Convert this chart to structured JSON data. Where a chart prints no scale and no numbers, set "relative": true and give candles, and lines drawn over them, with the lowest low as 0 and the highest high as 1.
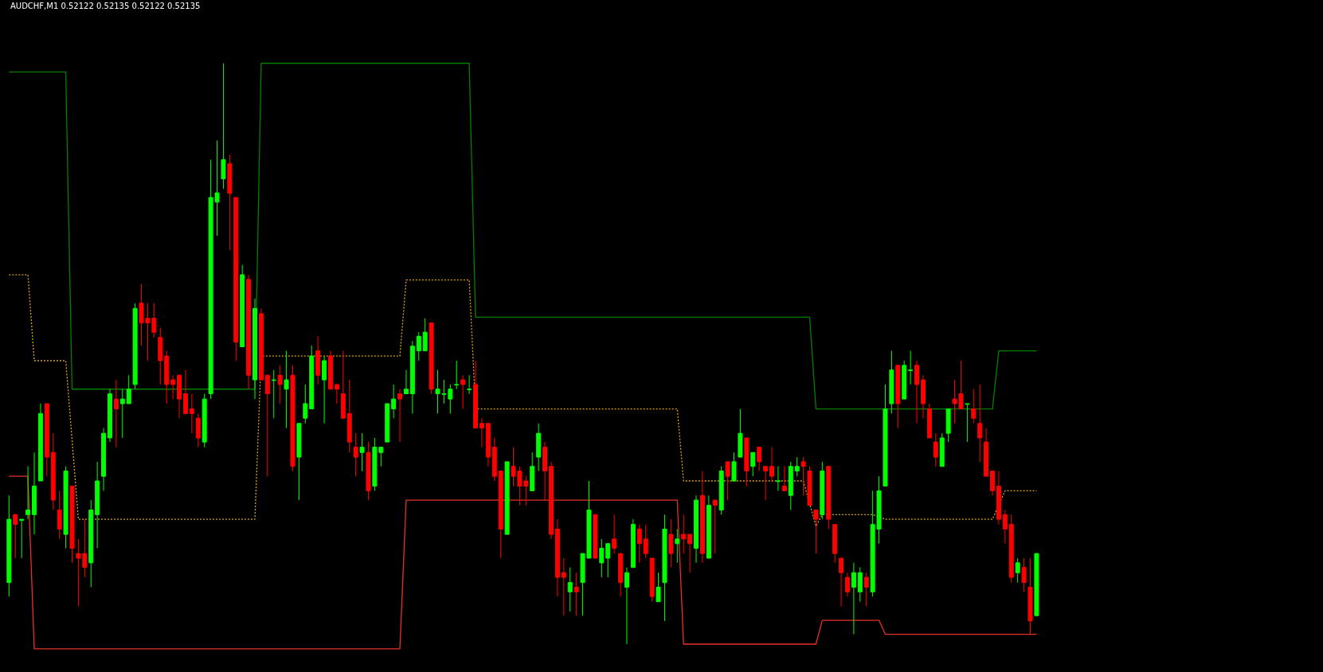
{
  "chart_data": {
    "type": "candlestick",
    "title": "AUDCHF,M1  0.52122 0.52135 0.52122 0.52135",
    "relative": true,
    "categories": [
      null,
      null,
      null,
      null,
      null,
      null,
      null,
      null,
      null,
      null,
      null,
      null,
      null,
      null,
      null,
      null,
      null,
      null,
      null,
      null,
      null,
      null,
      null,
      null,
      null,
      null,
      null,
      null,
      null,
      null,
      null,
      null,
      null,
      null,
      null,
      null,
      null,
      null,
      null,
      null,
      null,
      null,
      null,
      null,
      null,
      null,
      null,
      null,
      null,
      null,
      null,
      null,
      null,
      null,
      null,
      null,
      null,
      null,
      null,
      null,
      null,
      null,
      null,
      null,
      null,
      null,
      null,
      null,
      null,
      null,
      null,
      null,
      null,
      null,
      null,
      null,
      null,
      null,
      null,
      null,
      null,
      null,
      null,
      null,
      null,
      null,
      null,
      null,
      null,
      null,
      null,
      null,
      null,
      null,
      null,
      null,
      null,
      null,
      null,
      null,
      null,
      null,
      null,
      null,
      null,
      null,
      null,
      null,
      null,
      null,
      null,
      null,
      null,
      null,
      null,
      null,
      null,
      null,
      null,
      null,
      null,
      null,
      null,
      null,
      null,
      null,
      null,
      null,
      null,
      null,
      null,
      null,
      null,
      null,
      null,
      null,
      null,
      null,
      null,
      null,
      null,
      null,
      null,
      null,
      null,
      null,
      null,
      null,
      null,
      null,
      null,
      null,
      null,
      null,
      null,
      null,
      null,
      null,
      null,
      null,
      null,
      null,
      null,
      null
    ],
    "ohlc": [
      [
        0.106,
        0.256,
        0.082,
        0.215
      ],
      [
        0.223,
        0.224,
        0.148,
        0.206
      ],
      [
        0.213,
        0.215,
        0.148,
        0.215
      ],
      [
        0.223,
        0.306,
        0.215,
        0.231
      ],
      [
        0.223,
        0.33,
        0.189,
        0.272
      ],
      [
        0.281,
        0.414,
        0.281,
        0.397
      ],
      [
        0.414,
        0.414,
        0.289,
        0.322
      ],
      [
        0.33,
        0.363,
        0.231,
        0.248
      ],
      [
        0.231,
        0.264,
        0.181,
        0.198
      ],
      [
        0.189,
        0.306,
        0.165,
        0.298
      ],
      [
        0.272,
        0.272,
        0.14,
        0.165
      ],
      [
        0.156,
        0.181,
        0.065,
        0.148
      ],
      [
        0.156,
        0.215,
        0.115,
        0.132
      ],
      [
        0.14,
        0.248,
        0.098,
        0.231
      ],
      [
        0.223,
        0.314,
        0.165,
        0.281
      ],
      [
        0.289,
        0.372,
        0.264,
        0.363
      ],
      [
        0.355,
        0.439,
        0.348,
        0.431
      ],
      [
        0.422,
        0.455,
        0.339,
        0.405
      ],
      [
        0.414,
        0.439,
        0.355,
        0.422
      ],
      [
        0.414,
        0.463,
        0.414,
        0.439
      ],
      [
        0.447,
        0.587,
        0.439,
        0.578
      ],
      [
        0.587,
        0.62,
        0.514,
        0.553
      ],
      [
        0.561,
        0.587,
        0.488,
        0.553
      ],
      [
        0.561,
        0.587,
        0.528,
        0.537
      ],
      [
        0.528,
        0.545,
        0.447,
        0.488
      ],
      [
        0.496,
        0.505,
        0.414,
        0.447
      ],
      [
        0.455,
        0.463,
        0.422,
        0.447
      ],
      [
        0.463,
        0.463,
        0.389,
        0.422
      ],
      [
        0.431,
        0.472,
        0.395,
        0.397
      ],
      [
        0.405,
        0.431,
        0.363,
        0.397
      ],
      [
        0.389,
        0.397,
        0.339,
        0.355
      ],
      [
        0.348,
        0.431,
        0.339,
        0.422
      ],
      [
        0.431,
        0.834,
        0.422,
        0.769
      ],
      [
        0.761,
        0.867,
        0.703,
        0.777
      ],
      [
        0.801,
        1.0,
        0.784,
        0.834
      ],
      [
        0.827,
        0.843,
        0.678,
        0.776
      ],
      [
        0.769,
        0.769,
        0.488,
        0.52
      ],
      [
        0.512,
        0.653,
        0.512,
        0.636
      ],
      [
        0.628,
        0.636,
        0.439,
        0.463
      ],
      [
        0.455,
        0.595,
        0.422,
        0.578
      ],
      [
        0.569,
        0.578,
        0.454,
        0.455
      ],
      [
        0.463,
        0.463,
        0.289,
        0.431
      ],
      [
        0.454,
        0.472,
        0.389,
        0.455
      ],
      [
        0.463,
        0.48,
        0.414,
        0.447
      ],
      [
        0.439,
        0.505,
        0.372,
        0.455
      ],
      [
        0.463,
        0.48,
        0.298,
        0.306
      ],
      [
        0.322,
        0.38,
        0.248,
        0.38
      ],
      [
        0.389,
        0.447,
        0.38,
        0.414
      ],
      [
        0.405,
        0.514,
        0.405,
        0.496
      ],
      [
        0.505,
        0.53,
        0.447,
        0.463
      ],
      [
        0.455,
        0.496,
        0.38,
        0.488
      ],
      [
        0.496,
        0.505,
        0.439,
        0.439
      ],
      [
        0.447,
        0.447,
        0.414,
        0.439
      ],
      [
        0.431,
        0.505,
        0.389,
        0.389
      ],
      [
        0.397,
        0.455,
        0.33,
        0.348
      ],
      [
        0.339,
        0.363,
        0.289,
        0.322
      ],
      [
        0.33,
        0.363,
        0.298,
        0.339
      ],
      [
        0.33,
        0.348,
        0.248,
        0.264
      ],
      [
        0.272,
        0.355,
        0.264,
        0.339
      ],
      [
        0.33,
        0.339,
        0.306,
        0.339
      ],
      [
        0.348,
        0.414,
        0.348,
        0.414
      ],
      [
        0.405,
        0.447,
        0.389,
        0.422
      ],
      [
        0.431,
        0.439,
        0.348,
        0.422
      ],
      [
        0.431,
        0.472,
        0.431,
        0.439
      ],
      [
        0.431,
        0.522,
        0.397,
        0.513
      ],
      [
        0.505,
        0.537,
        0.488,
        0.53
      ],
      [
        0.505,
        0.561,
        0.505,
        0.537
      ],
      [
        0.553,
        0.553,
        0.431,
        0.439
      ],
      [
        0.431,
        0.472,
        0.397,
        0.439
      ],
      [
        0.43,
        0.455,
        0.414,
        0.431
      ],
      [
        0.422,
        0.447,
        0.397,
        0.439
      ],
      [
        0.446,
        0.488,
        0.439,
        0.447
      ],
      [
        0.455,
        0.463,
        0.405,
        0.447
      ],
      [
        0.438,
        0.463,
        0.431,
        0.439
      ],
      [
        0.447,
        0.488,
        0.372,
        0.372
      ],
      [
        0.38,
        0.389,
        0.339,
        0.372
      ],
      [
        0.38,
        0.38,
        0.306,
        0.322
      ],
      [
        0.339,
        0.355,
        0.281,
        0.289
      ],
      [
        0.298,
        0.298,
        0.148,
        0.198
      ],
      [
        0.189,
        0.314,
        0.189,
        0.314
      ],
      [
        0.306,
        0.339,
        0.272,
        0.289
      ],
      [
        0.298,
        0.306,
        0.239,
        0.272
      ],
      [
        0.281,
        0.289,
        0.239,
        0.272
      ],
      [
        0.264,
        0.33,
        0.264,
        0.306
      ],
      [
        0.322,
        0.38,
        0.298,
        0.363
      ],
      [
        0.339,
        0.348,
        0.248,
        0.298
      ],
      [
        0.306,
        0.314,
        0.181,
        0.189
      ],
      [
        0.198,
        0.215,
        0.082,
        0.115
      ],
      [
        0.123,
        0.148,
        0.049,
        0.115
      ],
      [
        0.09,
        0.132,
        0.056,
        0.106
      ],
      [
        0.098,
        0.123,
        0.049,
        0.09
      ],
      [
        0.106,
        0.156,
        0.049,
        0.156
      ],
      [
        0.148,
        0.281,
        0.148,
        0.231
      ],
      [
        0.223,
        0.223,
        0.148,
        0.148
      ],
      [
        0.14,
        0.181,
        0.115,
        0.165
      ],
      [
        0.148,
        0.173,
        0.115,
        0.173
      ],
      [
        0.181,
        0.223,
        0.156,
        0.165
      ],
      [
        0.156,
        0.156,
        0.082,
        0.106
      ],
      [
        0.098,
        0.132,
        0.0,
        0.123
      ],
      [
        0.132,
        0.215,
        0.132,
        0.206
      ],
      [
        0.198,
        0.206,
        0.14,
        0.173
      ],
      [
        0.181,
        0.206,
        0.148,
        0.156
      ],
      [
        0.148,
        0.148,
        0.073,
        0.082
      ],
      [
        0.073,
        0.123,
        0.073,
        0.098
      ],
      [
        0.106,
        0.223,
        0.04,
        0.198
      ],
      [
        0.189,
        0.215,
        0.132,
        0.156
      ],
      [
        0.173,
        0.198,
        0.14,
        0.181
      ],
      [
        0.189,
        0.223,
        0.156,
        0.181
      ],
      [
        0.189,
        0.189,
        0.123,
        0.173
      ],
      [
        0.165,
        0.256,
        0.14,
        0.248
      ],
      [
        0.256,
        0.298,
        0.14,
        0.156
      ],
      [
        0.148,
        0.256,
        0.148,
        0.239
      ],
      [
        0.248,
        0.248,
        0.156,
        0.239
      ],
      [
        0.231,
        0.306,
        0.223,
        0.298
      ],
      [
        0.314,
        0.314,
        0.248,
        0.289
      ],
      [
        0.281,
        0.33,
        0.281,
        0.314
      ],
      [
        0.322,
        0.405,
        0.322,
        0.363
      ],
      [
        0.355,
        0.355,
        0.272,
        0.298
      ],
      [
        0.306,
        0.33,
        0.289,
        0.33
      ],
      [
        0.339,
        0.339,
        0.298,
        0.314
      ],
      [
        0.306,
        0.306,
        0.248,
        0.298
      ],
      [
        0.306,
        0.339,
        0.281,
        0.289
      ],
      [
        0.28,
        0.306,
        0.264,
        0.281
      ],
      [
        0.272,
        0.306,
        0.264,
        0.264
      ],
      [
        0.256,
        0.314,
        0.231,
        0.306
      ],
      [
        0.298,
        0.322,
        0.289,
        0.306
      ],
      [
        0.314,
        0.322,
        0.256,
        0.306
      ],
      [
        0.298,
        0.306,
        0.239,
        0.239
      ],
      [
        0.231,
        0.231,
        0.156,
        0.215
      ],
      [
        0.223,
        0.314,
        0.215,
        0.298
      ],
      [
        0.306,
        0.306,
        0.198,
        0.215
      ],
      [
        0.206,
        0.206,
        0.14,
        0.156
      ],
      [
        0.148,
        0.148,
        0.065,
        0.123
      ],
      [
        0.115,
        0.123,
        0.082,
        0.09
      ],
      [
        0.098,
        0.14,
        0.017,
        0.123
      ],
      [
        0.09,
        0.132,
        0.073,
        0.123
      ],
      [
        0.115,
        0.123,
        0.065,
        0.098
      ],
      [
        0.09,
        0.264,
        0.082,
        0.206
      ],
      [
        0.198,
        0.289,
        0.173,
        0.264
      ],
      [
        0.272,
        0.447,
        0.272,
        0.405
      ],
      [
        0.414,
        0.505,
        0.397,
        0.472
      ],
      [
        0.48,
        0.48,
        0.372,
        0.414
      ],
      [
        0.422,
        0.488,
        0.422,
        0.48
      ],
      [
        0.471,
        0.505,
        0.447,
        0.472
      ],
      [
        0.48,
        0.488,
        0.38,
        0.447
      ],
      [
        0.455,
        0.463,
        0.389,
        0.414
      ],
      [
        0.405,
        0.414,
        0.355,
        0.355
      ],
      [
        0.348,
        0.363,
        0.306,
        0.322
      ],
      [
        0.306,
        0.363,
        0.306,
        0.355
      ],
      [
        0.363,
        0.405,
        0.348,
        0.405
      ],
      [
        0.422,
        0.455,
        0.38,
        0.414
      ],
      [
        0.431,
        0.488,
        0.405,
        0.405
      ],
      [
        0.413,
        0.414,
        0.348,
        0.414
      ],
      [
        0.405,
        0.439,
        0.38,
        0.389
      ],
      [
        0.38,
        0.447,
        0.314,
        0.355
      ],
      [
        0.348,
        0.372,
        0.289,
        0.289
      ],
      [
        0.298,
        0.298,
        0.256,
        0.264
      ],
      [
        0.272,
        0.298,
        0.206,
        0.215
      ],
      [
        0.223,
        0.231,
        0.173,
        0.198
      ],
      [
        0.206,
        0.223,
        0.106,
        0.115
      ],
      [
        0.123,
        0.148,
        0.106,
        0.14
      ],
      [
        0.132,
        0.148,
        0.09,
        0.106
      ],
      [
        0.098,
        0.148,
        0.017,
        0.04
      ],
      [
        0.049,
        0.156,
        0.049,
        0.156
      ]
    ],
    "colors": [
      "#00ff00",
      "#ff0000",
      "#00ff00",
      "#00ff00",
      "#00ff00",
      "#00ff00",
      "#ff0000",
      "#ff0000",
      "#ff0000",
      "#00ff00",
      "#ff0000",
      "#ff0000",
      "#ff0000",
      "#00ff00",
      "#00ff00",
      "#00ff00",
      "#00ff00",
      "#ff0000",
      "#00ff00",
      "#00ff00",
      "#00ff00",
      "#ff0000",
      "#ff0000",
      "#ff0000",
      "#ff0000",
      "#ff0000",
      "#ff0000",
      "#ff0000",
      "#ff0000",
      "#ff0000",
      "#ff0000",
      "#00ff00",
      "#00ff00",
      "#00ff00",
      "#00ff00",
      "#ff0000",
      "#ff0000",
      "#00ff00",
      "#ff0000",
      "#00ff00",
      "#ff0000",
      "#ff0000",
      "#00ff00",
      "#ff0000",
      "#00ff00",
      "#ff0000",
      "#00ff00",
      "#00ff00",
      "#00ff00",
      "#ff0000",
      "#00ff00",
      "#ff0000",
      "#ff0000",
      "#ff0000",
      "#ff0000",
      "#ff0000",
      "#00ff00",
      "#ff0000",
      "#00ff00",
      "#00ff00",
      "#00ff00",
      "#00ff00",
      "#ff0000",
      "#00ff00",
      "#00ff00",
      "#00ff00",
      "#00ff00",
      "#ff0000",
      "#00ff00",
      "#00ff00",
      "#00ff00",
      "#00ff00",
      "#ff0000",
      "#00ff00",
      "#ff0000",
      "#ff0000",
      "#ff0000",
      "#ff0000",
      "#ff0000",
      "#00ff00",
      "#ff0000",
      "#ff0000",
      "#ff0000",
      "#00ff00",
      "#00ff00",
      "#ff0000",
      "#ff0000",
      "#ff0000",
      "#ff0000",
      "#00ff00",
      "#ff0000",
      "#00ff00",
      "#00ff00",
      "#ff0000",
      "#00ff00",
      "#00ff00",
      "#ff0000",
      "#ff0000",
      "#00ff00",
      "#00ff00",
      "#ff0000",
      "#ff0000",
      "#ff0000",
      "#00ff00",
      "#00ff00",
      "#ff0000",
      "#00ff00",
      "#ff0000",
      "#ff0000",
      "#00ff00",
      "#ff0000",
      "#00ff00",
      "#ff0000",
      "#00ff00",
      "#ff0000",
      "#00ff00",
      "#00ff00",
      "#ff0000",
      "#00ff00",
      "#ff0000",
      "#ff0000",
      "#ff0000",
      "#00ff00",
      "#ff0000",
      "#00ff00",
      "#00ff00",
      "#ff0000",
      "#ff0000",
      "#ff0000",
      "#00ff00",
      "#ff0000",
      "#ff0000",
      "#ff0000",
      "#ff0000",
      "#00ff00",
      "#00ff00",
      "#ff0000",
      "#00ff00",
      "#00ff00",
      "#00ff00",
      "#00ff00",
      "#ff0000",
      "#00ff00",
      "#00ff00",
      "#ff0000",
      "#ff0000",
      "#ff0000",
      "#ff0000",
      "#00ff00",
      "#00ff00",
      "#ff0000",
      "#ff0000",
      "#00ff00",
      "#ff0000",
      "#ff0000",
      "#ff0000",
      "#ff0000",
      "#ff0000",
      "#ff0000",
      "#ff0000",
      "#00ff00",
      "#ff0000",
      "#ff0000",
      "#00ff00"
    ],
    "series": [
      {
        "type": "line",
        "color": "#008000",
        "line_style": "solid",
        "values": [
          0.985,
          0.985,
          0.985,
          0.985,
          0.985,
          0.985,
          0.985,
          0.985,
          0.985,
          0.985,
          0.439,
          0.439,
          0.439,
          0.439,
          0.439,
          0.439,
          0.439,
          0.439,
          0.439,
          0.439,
          0.439,
          0.439,
          0.439,
          0.439,
          0.439,
          0.439,
          0.439,
          0.439,
          0.439,
          0.439,
          0.439,
          0.439,
          0.439,
          0.439,
          0.439,
          0.439,
          0.439,
          0.439,
          0.439,
          0.439,
          1.0,
          1.0,
          1.0,
          1.0,
          1.0,
          1.0,
          1.0,
          1.0,
          1.0,
          1.0,
          1.0,
          1.0,
          1.0,
          1.0,
          1.0,
          1.0,
          1.0,
          1.0,
          1.0,
          1.0,
          1.0,
          1.0,
          1.0,
          1.0,
          1.0,
          1.0,
          1.0,
          1.0,
          1.0,
          1.0,
          1.0,
          1.0,
          1.0,
          1.0,
          0.563,
          0.563,
          0.563,
          0.563,
          0.563,
          0.563,
          0.563,
          0.563,
          0.563,
          0.563,
          0.563,
          0.563,
          0.563,
          0.563,
          0.563,
          0.563,
          0.563,
          0.563,
          0.563,
          0.563,
          0.563,
          0.563,
          0.563,
          0.563,
          0.563,
          0.563,
          0.563,
          0.563,
          0.563,
          0.563,
          0.563,
          0.563,
          0.563,
          0.563,
          0.563,
          0.563,
          0.563,
          0.563,
          0.563,
          0.563,
          0.563,
          0.563,
          0.563,
          0.563,
          0.563,
          0.563,
          0.563,
          0.563,
          0.563,
          0.563,
          0.563,
          0.563,
          0.563,
          0.563,
          0.405,
          0.405,
          0.405,
          0.405,
          0.405,
          0.405,
          0.405,
          0.405,
          0.405,
          0.405,
          0.405,
          0.405,
          0.405,
          0.405,
          0.405,
          0.405,
          0.405,
          0.405,
          0.405,
          0.405,
          0.405,
          0.405,
          0.405,
          0.405,
          0.405,
          0.405,
          0.405,
          0.405,
          0.405,
          0.505,
          0.505,
          0.505,
          0.505,
          0.505,
          0.505,
          0.505
        ]
      },
      {
        "type": "line",
        "color": "#e8302a",
        "line_style": "solid",
        "values": [
          0.289,
          0.289,
          0.289,
          0.289,
          -0.008,
          -0.008,
          -0.008,
          -0.008,
          -0.008,
          -0.008,
          -0.008,
          -0.008,
          -0.008,
          -0.008,
          -0.008,
          -0.008,
          -0.008,
          -0.008,
          -0.008,
          -0.008,
          -0.008,
          -0.008,
          -0.008,
          -0.008,
          -0.008,
          -0.008,
          -0.008,
          -0.008,
          -0.008,
          -0.008,
          -0.008,
          -0.008,
          -0.008,
          -0.008,
          -0.008,
          -0.008,
          -0.008,
          -0.008,
          -0.008,
          -0.008,
          -0.008,
          -0.008,
          -0.008,
          -0.008,
          -0.008,
          -0.008,
          -0.008,
          -0.008,
          -0.008,
          -0.008,
          -0.008,
          -0.008,
          -0.008,
          -0.008,
          -0.008,
          -0.008,
          -0.008,
          -0.008,
          -0.008,
          -0.008,
          -0.008,
          -0.008,
          -0.008,
          0.248,
          0.248,
          0.248,
          0.248,
          0.248,
          0.248,
          0.248,
          0.248,
          0.248,
          0.248,
          0.248,
          0.248,
          0.248,
          0.248,
          0.248,
          0.248,
          0.248,
          0.248,
          0.248,
          0.248,
          0.248,
          0.248,
          0.248,
          0.248,
          0.248,
          0.248,
          0.248,
          0.248,
          0.248,
          0.248,
          0.248,
          0.248,
          0.248,
          0.248,
          0.248,
          0.248,
          0.248,
          0.248,
          0.248,
          0.248,
          0.248,
          0.248,
          0.248,
          0.248,
          0.0,
          0.0,
          0.0,
          0.0,
          0.0,
          0.0,
          0.0,
          0.0,
          0.0,
          0.0,
          0.0,
          0.0,
          0.0,
          0.0,
          0.0,
          0.0,
          0.0,
          0.0,
          0.0,
          0.0,
          0.0,
          0.0,
          0.041,
          0.041,
          0.041,
          0.041,
          0.041,
          0.041,
          0.041,
          0.041,
          0.041,
          0.041,
          0.017,
          0.017,
          0.017,
          0.017,
          0.017,
          0.017,
          0.017,
          0.017,
          0.017,
          0.017,
          0.017,
          0.017,
          0.017,
          0.017,
          0.017,
          0.017,
          0.017,
          0.017,
          0.017,
          0.017,
          0.017,
          0.017,
          0.017,
          0.017,
          0.017
        ]
      },
      {
        "type": "line",
        "color": "#daa520",
        "line_style": "dotted",
        "values": [
          0.636,
          0.636,
          0.636,
          0.636,
          0.488,
          0.488,
          0.488,
          0.488,
          0.488,
          0.488,
          null,
          0.215,
          0.215,
          null,
          0.215,
          0.215,
          0.215,
          0.215,
          0.215,
          0.215,
          0.215,
          0.215,
          0.215,
          0.215,
          0.215,
          0.215,
          0.215,
          0.215,
          0.215,
          0.215,
          0.215,
          0.215,
          0.215,
          0.215,
          0.215,
          0.215,
          0.215,
          0.215,
          0.215,
          0.215,
          0.496,
          0.496,
          0.496,
          0.496,
          0.496,
          0.496,
          0.496,
          0.496,
          0.496,
          0.496,
          0.496,
          0.496,
          0.496,
          0.496,
          0.496,
          0.496,
          0.496,
          0.496,
          0.496,
          0.496,
          0.496,
          0.496,
          0.496,
          0.627,
          0.627,
          0.627,
          0.627,
          0.627,
          0.627,
          0.627,
          0.627,
          0.627,
          0.627,
          0.627,
          0.405,
          0.405,
          0.405,
          0.405,
          0.405,
          0.405,
          0.405,
          0.405,
          0.405,
          0.405,
          0.405,
          0.405,
          0.405,
          0.405,
          0.405,
          0.405,
          0.405,
          0.405,
          0.405,
          0.405,
          0.405,
          0.405,
          0.405,
          0.405,
          0.405,
          0.405,
          0.405,
          0.405,
          0.405,
          0.405,
          0.405,
          0.405,
          0.405,
          0.281,
          0.281,
          0.281,
          0.281,
          0.281,
          0.281,
          0.281,
          0.281,
          0.281,
          0.281,
          0.281,
          0.281,
          0.281,
          0.281,
          0.281,
          0.281,
          0.281,
          0.281,
          0.281,
          0.281,
          null,
          0.203,
          0.223,
          null,
          0.223,
          0.223,
          0.223,
          0.223,
          0.223,
          0.223,
          0.223,
          null,
          0.215,
          0.215,
          0.215,
          0.215,
          0.215,
          0.215,
          0.215,
          0.215,
          0.215,
          0.215,
          0.215,
          0.215,
          0.215,
          0.215,
          0.215,
          0.215,
          0.215,
          0.215,
          null,
          0.264,
          0.264,
          0.264,
          0.264,
          0.264,
          0.264
        ]
      }
    ]
  }
}
